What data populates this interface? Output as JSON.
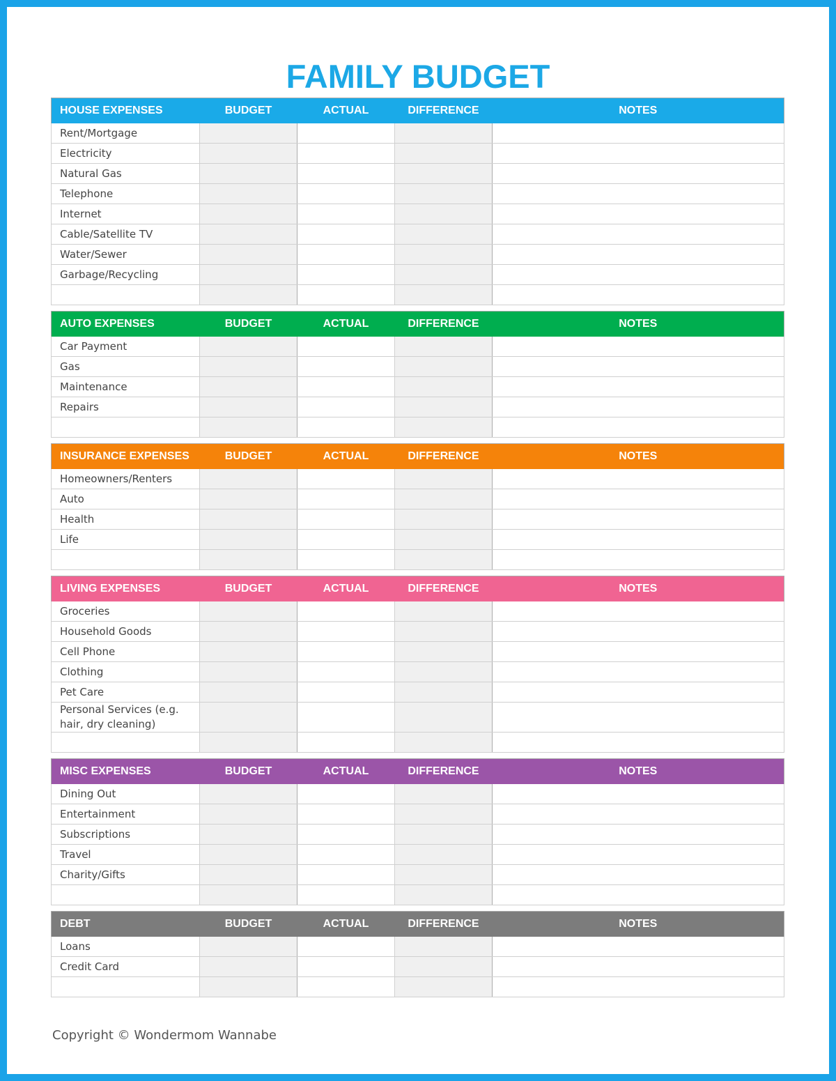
{
  "title": "FAMILY BUDGET",
  "sections": [
    {
      "name": "HOUSE EXPENSES",
      "columns": [
        "BUDGET",
        "ACTUAL",
        "DIFFERENCE",
        "NOTES"
      ],
      "rows": [
        "Rent/Mortgage",
        "Electricity",
        "Natural Gas",
        "Telephone",
        "Internet",
        "Cable/Satellite TV",
        "Water/Sewer",
        "Garbage/Recycling"
      ]
    },
    {
      "name": "AUTO EXPENSES",
      "columns": [
        "BUDGET",
        "ACTUAL",
        "DIFFERENCE",
        "NOTES"
      ],
      "rows": [
        "Car Payment",
        "Gas",
        "Maintenance",
        "Repairs"
      ]
    },
    {
      "name": "INSURANCE EXPENSES",
      "columns": [
        "BUDGET",
        "ACTUAL",
        "DIFFERENCE",
        "NOTES"
      ],
      "rows": [
        "Homeowners/Renters",
        "Auto",
        "Health",
        "Life"
      ]
    },
    {
      "name": "LIVING EXPENSES",
      "columns": [
        "BUDGET",
        "ACTUAL",
        "DIFFERENCE",
        "NOTES"
      ],
      "rows": [
        "Groceries",
        "Household Goods",
        "Cell Phone",
        "Clothing",
        "Pet Care",
        "Personal Services (e.g. hair, dry cleaning)"
      ]
    },
    {
      "name": "MISC EXPENSES",
      "columns": [
        "BUDGET",
        "ACTUAL",
        "DIFFERENCE",
        "NOTES"
      ],
      "rows": [
        "Dining Out",
        "Entertainment",
        "Subscriptions",
        "Travel",
        "Charity/Gifts"
      ]
    },
    {
      "name": "DEBT",
      "columns": [
        "BUDGET",
        "ACTUAL",
        "DIFFERENCE",
        "NOTES"
      ],
      "rows": [
        "Loans",
        "Credit Card"
      ]
    }
  ],
  "copyright": "Copyright © Wondermom Wannabe"
}
